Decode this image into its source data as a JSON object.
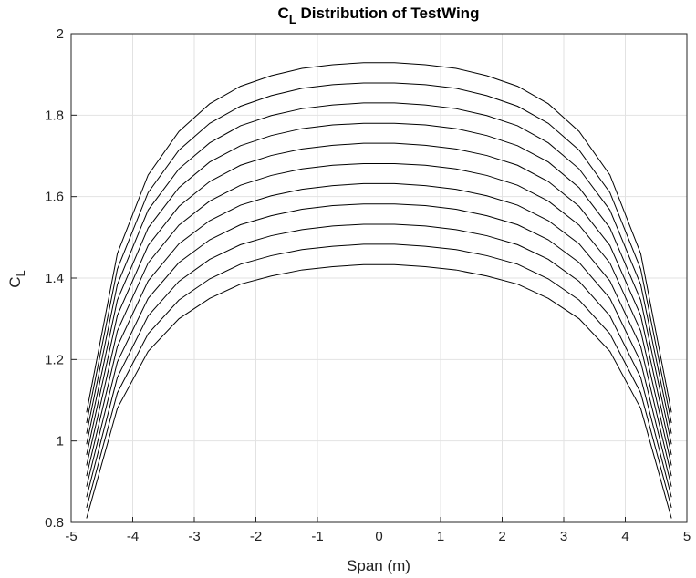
{
  "chart_data": {
    "type": "line",
    "title": "C",
    "title_sub": "L",
    "title_rest": " Distribution of TestWing",
    "xlabel": "Span (m)",
    "ylabel": "C",
    "ylabel_sub": "L",
    "xlim": [
      -5,
      5
    ],
    "ylim": [
      0.8,
      2
    ],
    "xticks": [
      -5,
      -4,
      -3,
      -2,
      -1,
      0,
      1,
      2,
      3,
      4,
      5
    ],
    "xtick_labels": [
      "-5",
      "-4",
      "-3",
      "-2",
      "-1",
      "0",
      "1",
      "2",
      "3",
      "4",
      "5"
    ],
    "yticks": [
      0.8,
      1,
      1.2,
      1.4,
      1.6,
      1.8,
      2
    ],
    "ytick_labels": [
      "0.8",
      "1",
      "1.2",
      "1.4",
      "1.6",
      "1.8",
      "2"
    ],
    "grid": true,
    "colors": {
      "line": "#000000",
      "grid": "#e2e2e2",
      "axis": "#262626"
    },
    "x": [
      -4.75,
      -4.25,
      -3.75,
      -3.25,
      -2.75,
      -2.25,
      -1.75,
      -1.25,
      -0.75,
      -0.25,
      0.25,
      0.75,
      1.25,
      1.75,
      2.25,
      2.75,
      3.25,
      3.75,
      4.25,
      4.75
    ],
    "series": [
      {
        "values": [
          0.81,
          1.08,
          1.22,
          1.3,
          1.35,
          1.385,
          1.405,
          1.42,
          1.428,
          1.433,
          1.433,
          1.428,
          1.42,
          1.405,
          1.385,
          1.35,
          1.3,
          1.22,
          1.08,
          0.81
        ]
      },
      {
        "values": [
          0.836,
          1.118,
          1.263,
          1.346,
          1.398,
          1.434,
          1.455,
          1.47,
          1.478,
          1.483,
          1.483,
          1.478,
          1.47,
          1.455,
          1.434,
          1.398,
          1.346,
          1.263,
          1.118,
          0.836
        ]
      },
      {
        "values": [
          0.862,
          1.156,
          1.307,
          1.392,
          1.446,
          1.482,
          1.504,
          1.519,
          1.528,
          1.532,
          1.532,
          1.528,
          1.519,
          1.504,
          1.482,
          1.446,
          1.392,
          1.307,
          1.156,
          0.862
        ]
      },
      {
        "values": [
          0.888,
          1.194,
          1.35,
          1.438,
          1.494,
          1.531,
          1.553,
          1.569,
          1.578,
          1.582,
          1.582,
          1.578,
          1.569,
          1.553,
          1.531,
          1.494,
          1.438,
          1.35,
          1.194,
          0.888
        ]
      },
      {
        "values": [
          0.914,
          1.232,
          1.393,
          1.484,
          1.541,
          1.579,
          1.602,
          1.618,
          1.627,
          1.632,
          1.632,
          1.627,
          1.618,
          1.602,
          1.579,
          1.541,
          1.484,
          1.393,
          1.232,
          0.914
        ]
      },
      {
        "values": [
          0.94,
          1.27,
          1.437,
          1.53,
          1.589,
          1.628,
          1.652,
          1.668,
          1.677,
          1.681,
          1.681,
          1.677,
          1.668,
          1.652,
          1.628,
          1.589,
          1.53,
          1.437,
          1.27,
          0.94
        ]
      },
      {
        "values": [
          0.966,
          1.308,
          1.48,
          1.576,
          1.637,
          1.677,
          1.701,
          1.717,
          1.726,
          1.731,
          1.731,
          1.726,
          1.717,
          1.701,
          1.677,
          1.637,
          1.576,
          1.48,
          1.308,
          0.966
        ]
      },
      {
        "values": [
          0.992,
          1.346,
          1.523,
          1.622,
          1.685,
          1.725,
          1.75,
          1.767,
          1.776,
          1.78,
          1.78,
          1.776,
          1.767,
          1.75,
          1.725,
          1.685,
          1.622,
          1.523,
          1.346,
          0.992
        ]
      },
      {
        "values": [
          1.018,
          1.384,
          1.567,
          1.668,
          1.732,
          1.774,
          1.799,
          1.816,
          1.825,
          1.83,
          1.83,
          1.825,
          1.816,
          1.799,
          1.774,
          1.732,
          1.668,
          1.567,
          1.384,
          1.018
        ]
      },
      {
        "values": [
          1.044,
          1.422,
          1.61,
          1.714,
          1.78,
          1.822,
          1.848,
          1.866,
          1.875,
          1.879,
          1.879,
          1.875,
          1.866,
          1.848,
          1.822,
          1.78,
          1.714,
          1.61,
          1.422,
          1.044
        ]
      },
      {
        "values": [
          1.07,
          1.46,
          1.653,
          1.76,
          1.828,
          1.871,
          1.897,
          1.915,
          1.924,
          1.929,
          1.929,
          1.924,
          1.915,
          1.897,
          1.871,
          1.828,
          1.76,
          1.653,
          1.46,
          1.07
        ]
      }
    ]
  }
}
